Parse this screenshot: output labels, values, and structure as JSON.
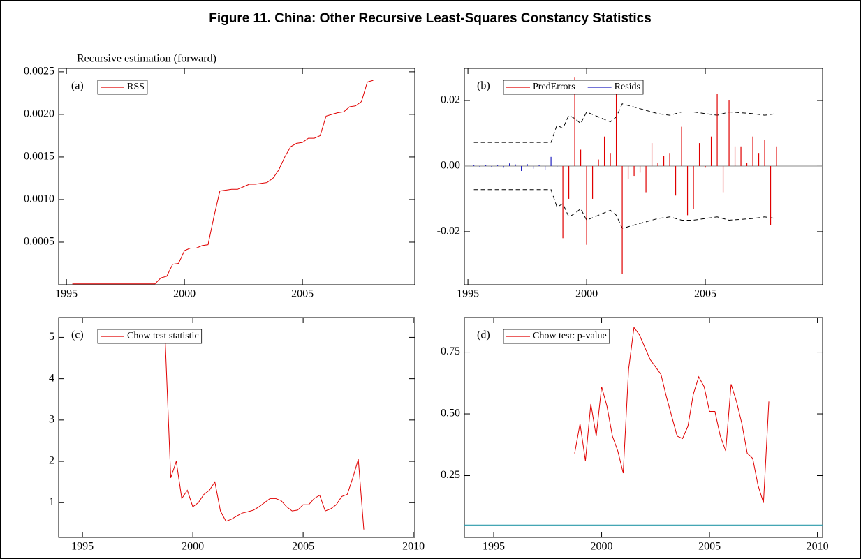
{
  "title": "Figure 11. China: Other Recursive Least-Squares Constancy Statistics",
  "chart_data": [
    {
      "type": "line",
      "label": "(a)",
      "annotation": "Recursive estimation (forward)",
      "xlim": [
        1994.67,
        2009.76
      ],
      "xticks": [
        1995,
        2000,
        2005
      ],
      "ylim": [
        0,
        0.00254
      ],
      "yticks": [
        0.0005,
        {
          "value": 0.001,
          "label": "0.0010"
        },
        0.0015,
        {
          "value": 0.002,
          "label": "0.0020"
        },
        0.0025
      ],
      "series": [
        {
          "name": "RSS",
          "color": "#e00000",
          "x": [
            1995.25,
            1995.5,
            1995.75,
            1996,
            1996.25,
            1996.5,
            1996.75,
            1997,
            1997.25,
            1997.5,
            1997.75,
            1998,
            1998.25,
            1998.5,
            1998.75,
            1999,
            1999.25,
            1999.5,
            1999.75,
            2000,
            2000.25,
            2000.5,
            2000.75,
            2001,
            2001.25,
            2001.5,
            2001.75,
            2002,
            2002.25,
            2002.5,
            2002.75,
            2003,
            2003.25,
            2003.5,
            2003.75,
            2004,
            2004.25,
            2004.5,
            2004.75,
            2005,
            2005.25,
            2005.5,
            2005.75,
            2006,
            2006.25,
            2006.5,
            2006.75,
            2007,
            2007.25,
            2007.5,
            2007.75,
            2008
          ],
          "values": [
            1e-05,
            1e-05,
            1e-05,
            1e-05,
            1e-05,
            1e-05,
            1e-05,
            1e-05,
            1e-05,
            1e-05,
            1e-05,
            1e-05,
            1e-05,
            1e-05,
            1e-05,
            8e-05,
            0.0001,
            0.00024,
            0.00025,
            0.0004,
            0.00043,
            0.00043,
            0.00046,
            0.00047,
            0.0008,
            0.0011,
            0.00111,
            0.00112,
            0.00112,
            0.00115,
            0.00118,
            0.00118,
            0.00119,
            0.0012,
            0.00125,
            0.00135,
            0.0015,
            0.00162,
            0.00166,
            0.00167,
            0.00172,
            0.00172,
            0.00175,
            0.00198,
            0.002,
            0.00202,
            0.00203,
            0.00209,
            0.0021,
            0.00215,
            0.00238,
            0.0024
          ]
        }
      ]
    },
    {
      "type": "spike",
      "label": "(b)",
      "zero_line": true,
      "xlim": [
        1994.85,
        2009.94
      ],
      "xticks": [
        1995,
        2000,
        2005
      ],
      "ylim": [
        -0.0362,
        0.0298
      ],
      "yticks": [
        -0.02,
        {
          "value": 0,
          "label": "0.00"
        },
        0.02
      ],
      "series": [
        {
          "name": "PredErrors",
          "color": "#e00000",
          "x": [
            1999,
            1999.25,
            1999.5,
            1999.75,
            2000,
            2000.25,
            2000.5,
            2000.75,
            2001,
            2001.25,
            2001.5,
            2001.75,
            2002,
            2002.25,
            2002.5,
            2002.75,
            2003,
            2003.25,
            2003.5,
            2003.75,
            2004,
            2004.25,
            2004.5,
            2004.75,
            2005,
            2005.25,
            2005.5,
            2005.75,
            2006,
            2006.25,
            2006.5,
            2006.75,
            2007,
            2007.25,
            2007.5,
            2007.75,
            2008
          ],
          "values": [
            -0.022,
            -0.01,
            0.027,
            0.005,
            -0.024,
            -0.01,
            0.002,
            0.009,
            0.004,
            0.026,
            -0.033,
            -0.004,
            -0.003,
            -0.002,
            -0.008,
            0.007,
            0.001,
            0.003,
            0.004,
            -0.009,
            0.012,
            -0.015,
            -0.013,
            0.007,
            -0.0005,
            0.009,
            0.022,
            -0.008,
            0.02,
            0.006,
            0.006,
            0.001,
            0.009,
            0.004,
            0.008,
            -0.018,
            0.006
          ]
        },
        {
          "name": "Resids",
          "color": "#2020c0",
          "x": [
            1995.25,
            1995.5,
            1995.75,
            1996,
            1996.25,
            1996.5,
            1996.75,
            1997,
            1997.25,
            1997.5,
            1997.75,
            1998,
            1998.25,
            1998.5,
            1998.75
          ],
          "values": [
            0.0002,
            -0.0002,
            0.0003,
            -0.0003,
            0.0002,
            -0.0005,
            0.0008,
            0.0005,
            -0.0015,
            0.0006,
            -0.0008,
            0.0004,
            -0.0012,
            0.0028,
            -0.0003
          ]
        }
      ],
      "bands": [
        {
          "color": "#000000",
          "x": [
            1995.25,
            1998.5,
            1998.75,
            1999,
            1999.25,
            1999.5,
            1999.75,
            2000,
            2000.5,
            2001,
            2001.25,
            2001.5,
            2002,
            2003,
            2003.5,
            2004,
            2004.5,
            2005,
            2005.5,
            2006,
            2007,
            2007.5,
            2008
          ],
          "values": [
            0.0072,
            0.0072,
            0.0125,
            0.0115,
            0.0155,
            0.0145,
            0.013,
            0.0165,
            0.015,
            0.0135,
            0.015,
            0.019,
            0.018,
            0.016,
            0.0155,
            0.0165,
            0.0165,
            0.016,
            0.0155,
            0.0165,
            0.016,
            0.0155,
            0.016
          ]
        },
        {
          "color": "#000000",
          "x": [
            1995.25,
            1998.5,
            1998.75,
            1999,
            1999.25,
            1999.5,
            1999.75,
            2000,
            2000.5,
            2001,
            2001.25,
            2001.5,
            2002,
            2003,
            2003.5,
            2004,
            2004.5,
            2005,
            2005.5,
            2006,
            2007,
            2007.5,
            2008
          ],
          "values": [
            -0.0072,
            -0.0072,
            -0.0125,
            -0.0115,
            -0.0155,
            -0.0145,
            -0.013,
            -0.0165,
            -0.015,
            -0.0135,
            -0.015,
            -0.019,
            -0.018,
            -0.016,
            -0.0155,
            -0.0165,
            -0.0165,
            -0.016,
            -0.0155,
            -0.0165,
            -0.016,
            -0.0155,
            -0.016
          ]
        }
      ]
    },
    {
      "type": "line",
      "label": "(c)",
      "xlim": [
        1993.92,
        2010.06
      ],
      "xticks": [
        1995,
        2000,
        2005,
        2010
      ],
      "ylim": [
        0.16,
        5.48
      ],
      "yticks": [
        1,
        2,
        3,
        4,
        5
      ],
      "series": [
        {
          "name": "Chow test statistic",
          "color": "#e00000",
          "x": [
            1998.75,
            1999,
            1999.25,
            1999.5,
            1999.75,
            2000,
            2000.25,
            2000.5,
            2000.75,
            2001,
            2001.25,
            2001.5,
            2001.75,
            2002,
            2002.25,
            2002.5,
            2002.75,
            2003,
            2003.25,
            2003.5,
            2003.75,
            2004,
            2004.25,
            2004.5,
            2004.75,
            2005,
            2005.25,
            2005.5,
            2005.75,
            2006,
            2006.25,
            2006.5,
            2006.75,
            2007,
            2007.25,
            2007.5,
            2007.75
          ],
          "values": [
            4.9,
            1.6,
            2.0,
            1.1,
            1.3,
            0.9,
            1.0,
            1.2,
            1.3,
            1.5,
            0.8,
            0.55,
            0.6,
            0.68,
            0.75,
            0.78,
            0.82,
            0.9,
            1.0,
            1.1,
            1.1,
            1.05,
            0.9,
            0.8,
            0.82,
            0.95,
            0.95,
            1.1,
            1.18,
            0.8,
            0.85,
            0.95,
            1.15,
            1.2,
            1.6,
            2.05,
            0.35
          ]
        }
      ]
    },
    {
      "type": "line",
      "label": "(d)",
      "xlim": [
        1993.64,
        2010.24
      ],
      "xticks": [
        1995,
        2000,
        2005,
        2010
      ],
      "ylim": [
        0,
        0.89
      ],
      "yticks": [
        0.25,
        {
          "value": 0.5,
          "label": "0.50"
        },
        0.75
      ],
      "hline": {
        "value": 0.05,
        "color": "#2a9aaa"
      },
      "series": [
        {
          "name": "Chow test: p-value",
          "color": "#e00000",
          "x": [
            1998.75,
            1999,
            1999.25,
            1999.5,
            1999.75,
            2000,
            2000.25,
            2000.5,
            2000.75,
            2001,
            2001.25,
            2001.5,
            2001.75,
            2002,
            2002.25,
            2002.5,
            2002.75,
            2003,
            2003.25,
            2003.5,
            2003.75,
            2004,
            2004.25,
            2004.5,
            2004.75,
            2005,
            2005.25,
            2005.5,
            2005.75,
            2006,
            2006.25,
            2006.5,
            2006.75,
            2007,
            2007.25,
            2007.5,
            2007.75
          ],
          "values": [
            0.34,
            0.46,
            0.31,
            0.54,
            0.41,
            0.61,
            0.53,
            0.41,
            0.35,
            0.26,
            0.68,
            0.85,
            0.82,
            0.77,
            0.72,
            0.69,
            0.66,
            0.57,
            0.49,
            0.41,
            0.4,
            0.45,
            0.58,
            0.65,
            0.61,
            0.51,
            0.51,
            0.41,
            0.35,
            0.62,
            0.55,
            0.46,
            0.34,
            0.32,
            0.21,
            0.14,
            0.55
          ]
        }
      ]
    }
  ]
}
